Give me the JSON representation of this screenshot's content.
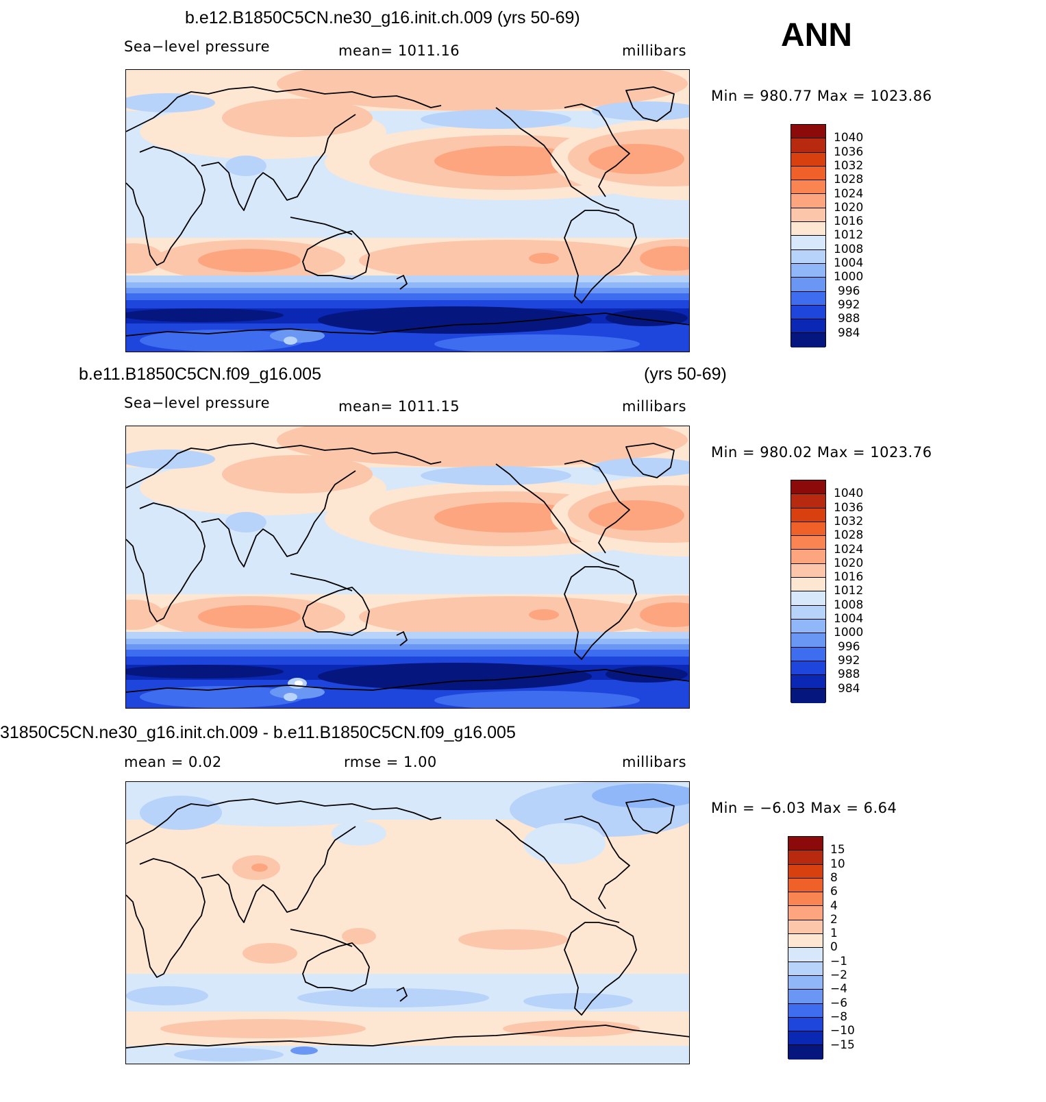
{
  "season": "ANN",
  "panels": [
    {
      "title_left": "b.e12.B1850C5CN.ne30_g16.init.ch.009 (yrs 50-69)",
      "title_right": "",
      "left_label": "Sea−level pressure",
      "center_label": "mean=  1011.16",
      "right_label": "millibars",
      "minmax": "Min  =  980.77  Max  =  1023.86",
      "kind": "abs",
      "variant": 0
    },
    {
      "title_left": "b.e11.B1850C5CN.f09_g16.005",
      "title_right": "(yrs 50-69)",
      "left_label": "Sea−level pressure",
      "center_label": "mean=  1011.15",
      "right_label": "millibars",
      "minmax": "Min  =  980.02  Max  =  1023.76",
      "kind": "abs",
      "variant": 1
    },
    {
      "title_left": "31850C5CN.ne30_g16.init.ch.009 - b.e11.B1850C5CN.f09_g16.005",
      "title_right": "",
      "left_label": "mean  =     0.02",
      "center_label": "rmse  =     1.00",
      "right_label": "millibars",
      "minmax": "Min  =   −6.03  Max  =     6.64",
      "kind": "diff",
      "variant": 2
    }
  ],
  "colorbars": {
    "abs": {
      "levels": [
        "1040",
        "1036",
        "1032",
        "1028",
        "1024",
        "1020",
        "1016",
        "1012",
        "1008",
        "1004",
        "1000",
        "996",
        "992",
        "988",
        "984"
      ],
      "colors": [
        "#8c0a0a",
        "#b82a10",
        "#d9400f",
        "#f0612a",
        "#fa8452",
        "#fca57f",
        "#fcc6aa",
        "#fde6d2",
        "#d8e8fb",
        "#b7d3fa",
        "#90b8f8",
        "#6a97f4",
        "#3f6df0",
        "#1e46dd",
        "#0b28b5",
        "#06167f"
      ]
    },
    "diff": {
      "levels": [
        "15",
        "10",
        "8",
        "6",
        "4",
        "2",
        "1",
        "0",
        "−1",
        "−2",
        "−4",
        "−6",
        "−8",
        "−10",
        "−15"
      ],
      "colors": [
        "#8c0a0a",
        "#b82a10",
        "#d9400f",
        "#f0612a",
        "#fa8452",
        "#fca57f",
        "#fcc6aa",
        "#fde6d2",
        "#d8e8fb",
        "#b7d3fa",
        "#90b8f8",
        "#6a97f4",
        "#3f6df0",
        "#1e46dd",
        "#0b28b5",
        "#06167f"
      ]
    }
  }
}
